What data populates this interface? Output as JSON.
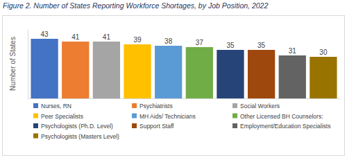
{
  "chart_data": {
    "type": "bar",
    "title": "Figure 2. Number of States Reporting Workforce Shortages, by Job Position, 2022",
    "ylabel": "Number of States",
    "categories": [
      "Nurses, RN",
      "Psychiatrists",
      "Social Workers",
      "Peer Specialists",
      "MH Aids/ Technicians",
      "Other Licensed BH Counselors:",
      "Psychologists (Ph.D. Level)",
      "Support Staff",
      "Employment/Education Specialists",
      "Psychologists (Masters Level)"
    ],
    "values": [
      43,
      41,
      41,
      39,
      38,
      37,
      35,
      35,
      31,
      30
    ],
    "colors": [
      "#4472c4",
      "#ed7d31",
      "#a5a5a5",
      "#ffc000",
      "#5b9bd5",
      "#70ad47",
      "#264478",
      "#9e480e",
      "#636363",
      "#997300"
    ],
    "ylim": [
      0,
      50
    ],
    "data_labels": true,
    "tick_labels": false,
    "grid": false,
    "legend": "bottom"
  }
}
